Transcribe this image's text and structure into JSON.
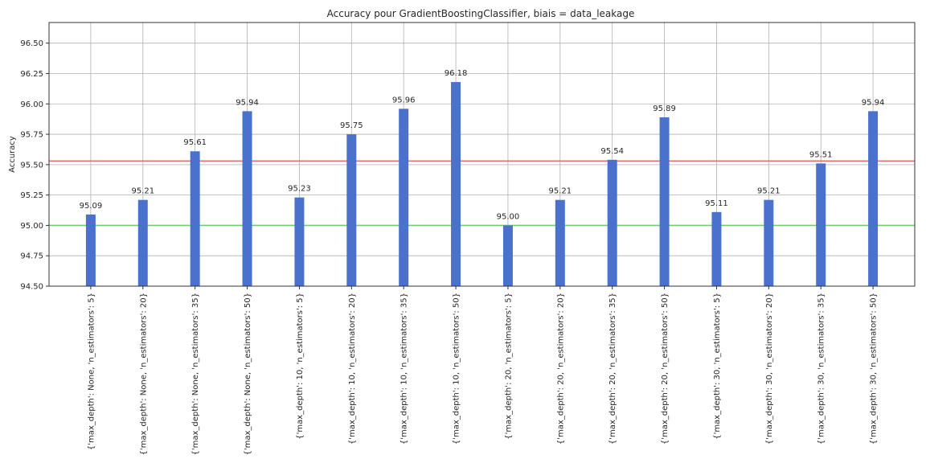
{
  "chart_data": {
    "type": "bar",
    "title": "Accuracy pour GradientBoostingClassifier, biais = data_leakage",
    "xlabel": "",
    "ylabel": "Accuracy",
    "ylim": [
      94.5,
      96.67
    ],
    "yticks": [
      "94.50",
      "94.75",
      "95.00",
      "95.25",
      "95.50",
      "95.75",
      "96.00",
      "96.25",
      "96.50"
    ],
    "grid": true,
    "categories": [
      "{'max_depth': None, 'n_estimators': 5}",
      "{'max_depth': None, 'n_estimators': 20}",
      "{'max_depth': None, 'n_estimators': 35}",
      "{'max_depth': None, 'n_estimators': 50}",
      "{'max_depth': 10, 'n_estimators': 5}",
      "{'max_depth': 10, 'n_estimators': 20}",
      "{'max_depth': 10, 'n_estimators': 35}",
      "{'max_depth': 10, 'n_estimators': 50}",
      "{'max_depth': 20, 'n_estimators': 5}",
      "{'max_depth': 20, 'n_estimators': 20}",
      "{'max_depth': 20, 'n_estimators': 35}",
      "{'max_depth': 20, 'n_estimators': 50}",
      "{'max_depth': 30, 'n_estimators': 5}",
      "{'max_depth': 30, 'n_estimators': 20}",
      "{'max_depth': 30, 'n_estimators': 35}",
      "{'max_depth': 30, 'n_estimators': 50}"
    ],
    "values": [
      95.09,
      95.21,
      95.61,
      95.94,
      95.23,
      95.75,
      95.96,
      96.18,
      95.0,
      95.21,
      95.54,
      95.89,
      95.11,
      95.21,
      95.51,
      95.94
    ],
    "value_labels": [
      "95.09",
      "95.21",
      "95.61",
      "95.94",
      "95.23",
      "95.75",
      "95.96",
      "96.18",
      "95.00",
      "95.21",
      "95.54",
      "95.89",
      "95.11",
      "95.21",
      "95.51",
      "95.94"
    ],
    "reference_lines": [
      {
        "value": 95.53,
        "color": "#e07070"
      },
      {
        "value": 95.0,
        "color": "#6ccf6c"
      }
    ],
    "bar_color": "#4a72cc"
  }
}
